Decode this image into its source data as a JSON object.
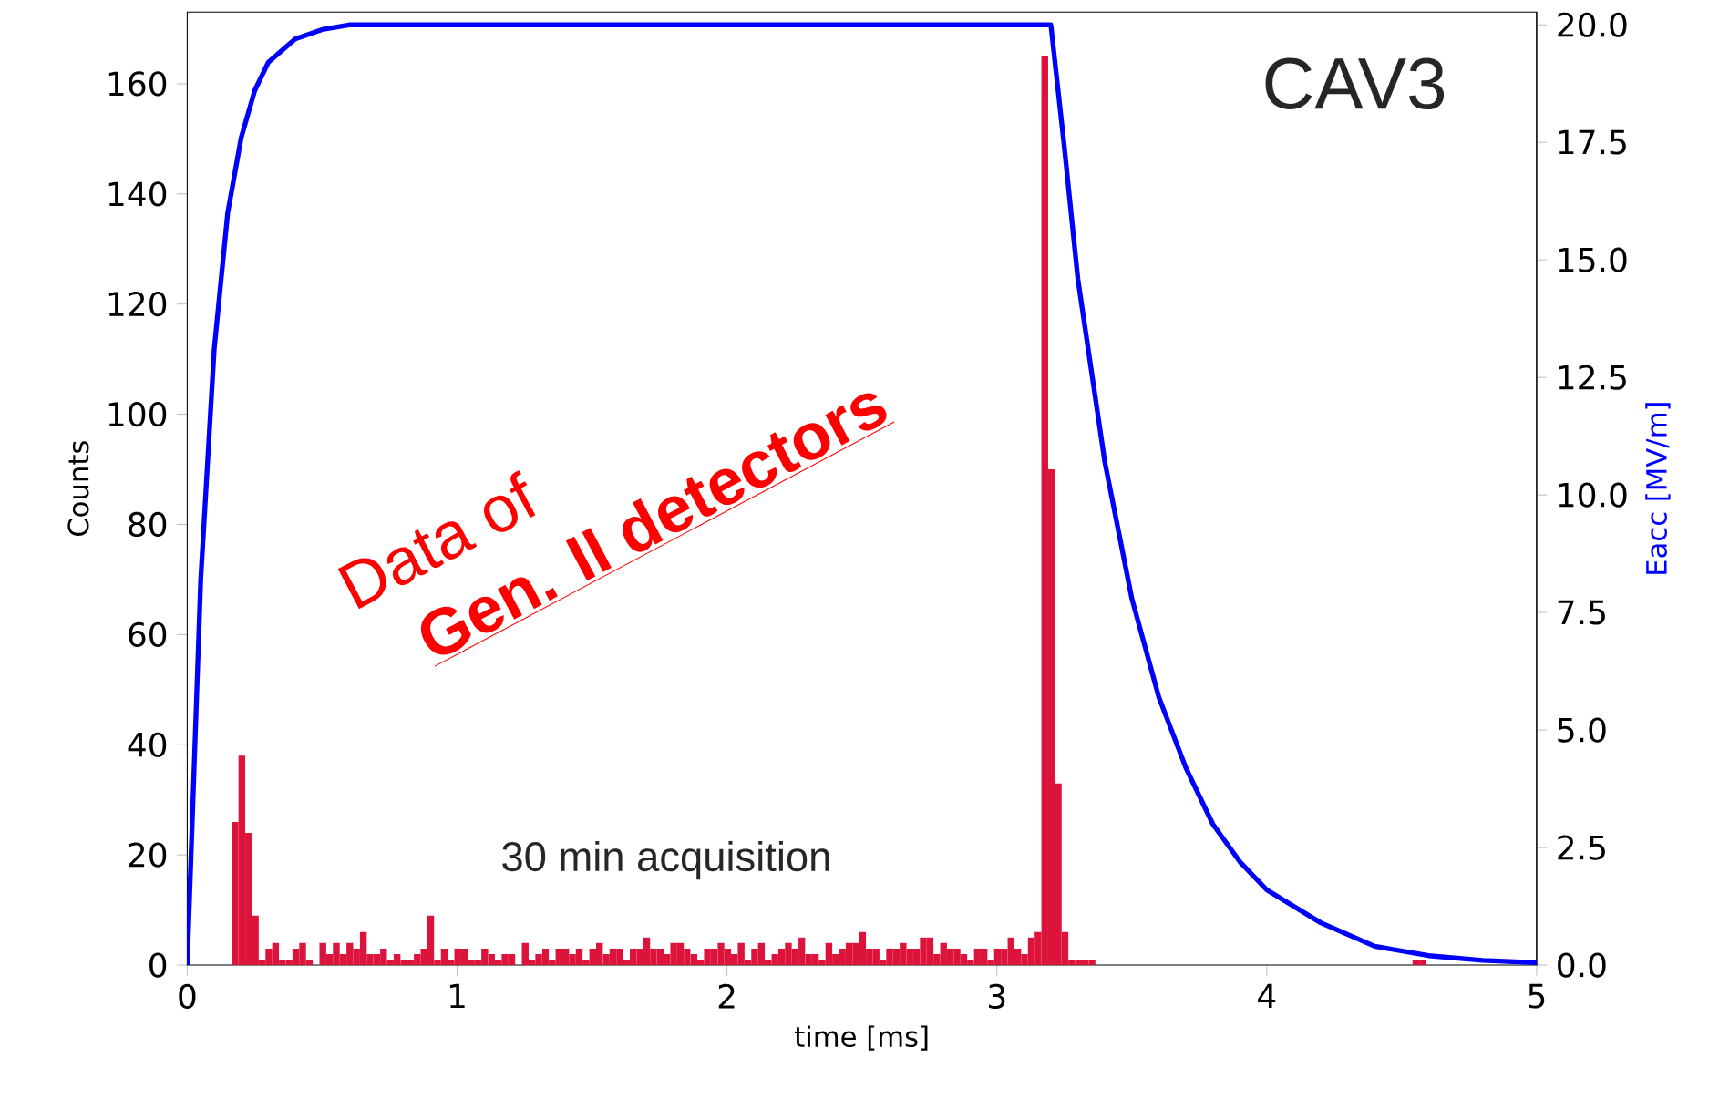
{
  "chart_data": {
    "type": "histogram",
    "xlabel": "time [ms]",
    "ylabel": "Counts",
    "y2label": "Eacc [MV/m]",
    "color": "#dc143c",
    "bins": [
      0.165,
      0.19,
      0.215,
      0.24,
      0.265,
      0.29,
      0.315,
      0.34,
      0.365,
      0.39,
      0.415,
      0.44,
      0.465,
      0.49,
      0.515,
      0.54,
      0.565,
      0.59,
      0.615,
      0.64,
      0.665,
      0.69,
      0.715,
      0.74,
      0.765,
      0.79,
      0.815,
      0.84,
      0.865,
      0.89,
      0.915,
      0.94,
      0.965,
      0.99,
      1.015,
      1.04,
      1.065,
      1.09,
      1.115,
      1.14,
      1.165,
      1.19,
      1.215,
      1.24,
      1.265,
      1.29,
      1.315,
      1.34,
      1.365,
      1.39,
      1.415,
      1.44,
      1.465,
      1.49,
      1.515,
      1.54,
      1.565,
      1.59,
      1.615,
      1.64,
      1.665,
      1.69,
      1.715,
      1.74,
      1.765,
      1.79,
      1.815,
      1.84,
      1.865,
      1.89,
      1.915,
      1.94,
      1.965,
      1.99,
      2.015,
      2.04,
      2.065,
      2.09,
      2.115,
      2.14,
      2.165,
      2.19,
      2.215,
      2.24,
      2.265,
      2.29,
      2.315,
      2.34,
      2.365,
      2.39,
      2.415,
      2.44,
      2.465,
      2.49,
      2.515,
      2.54,
      2.565,
      2.59,
      2.615,
      2.64,
      2.665,
      2.69,
      2.715,
      2.74,
      2.765,
      2.79,
      2.815,
      2.84,
      2.865,
      2.89,
      2.915,
      2.94,
      2.965,
      2.99,
      3.015,
      3.04,
      3.065,
      3.09,
      3.115,
      3.14,
      3.165,
      3.19,
      3.215,
      3.24,
      3.265,
      3.29,
      3.315,
      3.34,
      3.365,
      4.54,
      4.565,
      4.59
    ],
    "values": [
      26,
      38,
      24,
      9,
      1,
      3,
      4,
      1,
      1,
      3,
      4,
      1,
      0,
      4,
      2,
      4,
      2,
      4,
      3,
      6,
      2,
      2,
      3,
      1,
      2,
      1,
      1,
      2,
      3,
      9,
      1,
      3,
      1,
      3,
      3,
      1,
      1,
      3,
      2,
      1,
      2,
      2,
      0,
      4,
      1,
      2,
      3,
      1,
      3,
      3,
      2,
      3,
      1,
      3,
      4,
      2,
      3,
      3,
      1,
      3,
      3,
      5,
      3,
      3,
      2,
      4,
      4,
      3,
      2,
      1,
      3,
      3,
      4,
      3,
      2,
      4,
      1,
      3,
      4,
      1,
      2,
      3,
      4,
      3,
      5,
      2,
      2,
      1,
      4,
      2,
      3,
      4,
      4,
      6,
      3,
      3,
      1,
      3,
      3,
      4,
      3,
      3,
      5,
      5,
      2,
      4,
      3,
      3,
      2,
      1,
      3,
      3,
      1,
      3,
      3,
      5,
      3,
      2,
      5,
      6,
      165,
      90,
      33,
      6,
      1,
      1,
      1,
      1,
      0,
      1,
      1
    ],
    "series": [
      {
        "type": "line",
        "axis": "y2",
        "color": "#0000ff",
        "x": [
          0,
          0.05,
          0.1,
          0.15,
          0.2,
          0.25,
          0.3,
          0.4,
          0.5,
          0.6,
          0.8,
          3.2,
          3.25,
          3.3,
          3.4,
          3.5,
          3.6,
          3.7,
          3.8,
          3.9,
          4.0,
          4.2,
          4.4,
          4.6,
          4.8,
          5.0
        ],
        "values": [
          0,
          8.2,
          13.1,
          16.0,
          17.6,
          18.6,
          19.2,
          19.7,
          19.9,
          20,
          20,
          20,
          17.4,
          14.6,
          10.7,
          7.8,
          5.7,
          4.2,
          3.0,
          2.2,
          1.6,
          0.9,
          0.4,
          0.2,
          0.1,
          0.05
        ]
      }
    ],
    "xlim": [
      0,
      5
    ],
    "ylim": [
      0,
      173
    ],
    "y2lim": [
      0,
      20.27
    ],
    "xticks": [
      0,
      1,
      2,
      3,
      4,
      5
    ],
    "yticks": [
      0,
      20,
      40,
      60,
      80,
      100,
      120,
      140,
      160
    ],
    "y2ticks": [
      {
        "value": 0,
        "label": "0.0"
      },
      {
        "value": 2.5,
        "label": "2.5"
      },
      {
        "value": 5,
        "label": "5.0"
      },
      {
        "value": 7.5,
        "label": "7.5"
      },
      {
        "value": 10,
        "label": "10.0"
      },
      {
        "value": 12.5,
        "label": "12.5"
      },
      {
        "value": 15,
        "label": "15.0"
      },
      {
        "value": 17.5,
        "label": "17.5"
      },
      {
        "value": 20,
        "label": "20.0"
      }
    ],
    "annotations": [
      "CAV3",
      "30 min acquisition",
      "Data of",
      "Gen. II detectors"
    ]
  }
}
